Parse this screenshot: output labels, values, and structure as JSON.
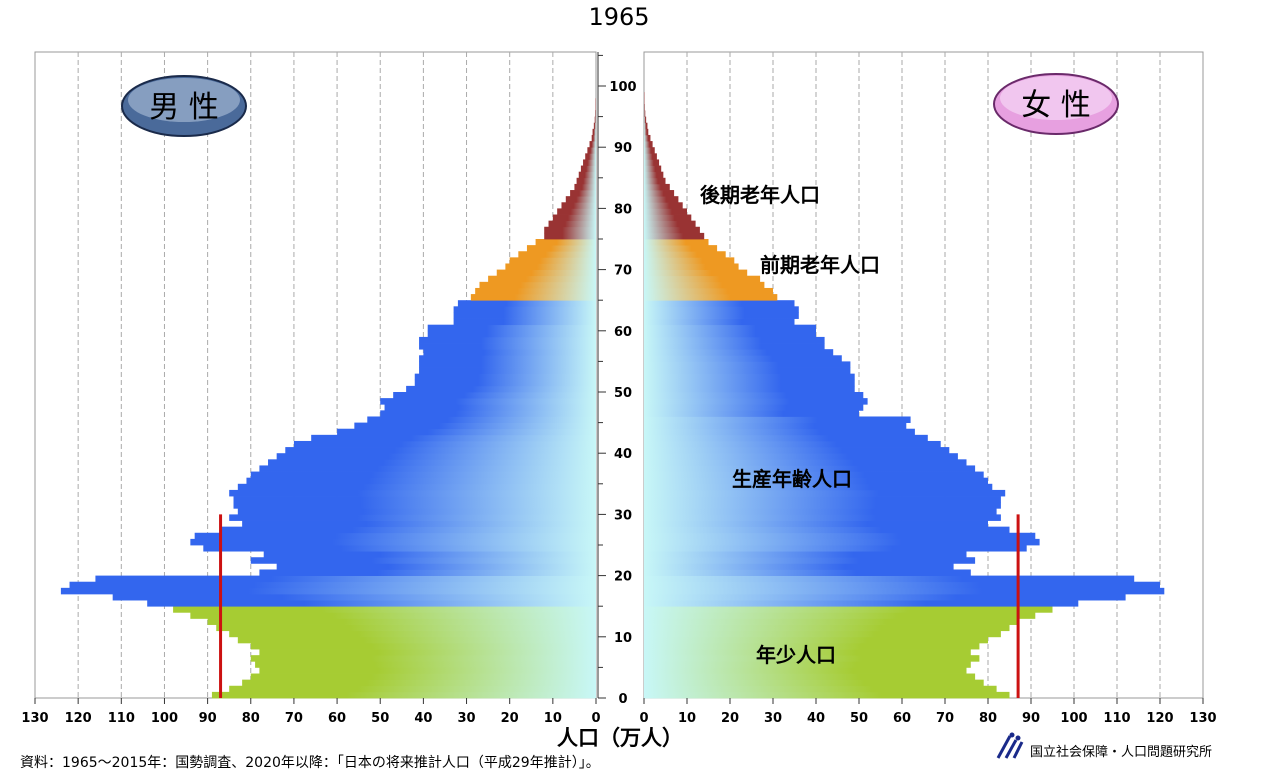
{
  "chart_data": {
    "type": "bar",
    "orientation": "horizontal-pyramid",
    "title": "1965",
    "xlabel": "人口（万人）",
    "male_label": "男 性",
    "female_label": "女 性",
    "x_ticks": [
      130,
      120,
      110,
      100,
      90,
      80,
      70,
      60,
      50,
      40,
      30,
      20,
      10,
      0
    ],
    "x_ticks_right": [
      0,
      10,
      20,
      30,
      40,
      50,
      60,
      70,
      80,
      90,
      100,
      110,
      120,
      130
    ],
    "age_ticks": [
      0,
      10,
      20,
      30,
      40,
      50,
      60,
      70,
      80,
      90,
      100
    ],
    "xlim": [
      0,
      130
    ],
    "ylim": [
      0,
      105
    ],
    "grid": true,
    "age": [
      0,
      1,
      2,
      3,
      4,
      5,
      6,
      7,
      8,
      9,
      10,
      11,
      12,
      13,
      14,
      15,
      16,
      17,
      18,
      19,
      20,
      21,
      22,
      23,
      24,
      25,
      26,
      27,
      28,
      29,
      30,
      31,
      32,
      33,
      34,
      35,
      36,
      37,
      38,
      39,
      40,
      41,
      42,
      43,
      44,
      45,
      46,
      47,
      48,
      49,
      50,
      51,
      52,
      53,
      54,
      55,
      56,
      57,
      58,
      59,
      60,
      61,
      62,
      63,
      64,
      65,
      66,
      67,
      68,
      69,
      70,
      71,
      72,
      73,
      74,
      75,
      76,
      77,
      78,
      79,
      80,
      81,
      82,
      83,
      84,
      85,
      86,
      87,
      88,
      89,
      90,
      91,
      92,
      93,
      94,
      95,
      96,
      97,
      98,
      99,
      100
    ],
    "series": [
      {
        "name": "男 性",
        "values": [
          89,
          85,
          82,
          80,
          78,
          79,
          80,
          78,
          80,
          83,
          85,
          88,
          90,
          94,
          98,
          104,
          112,
          124,
          122,
          116,
          78,
          74,
          80,
          77,
          91,
          94,
          93,
          87,
          82,
          85,
          83,
          84,
          84,
          85,
          83,
          81,
          80,
          78,
          76,
          74,
          72,
          70,
          66,
          60,
          56,
          53,
          50,
          49,
          50,
          47,
          44,
          42,
          42,
          41,
          41,
          41,
          40,
          41,
          41,
          39,
          39,
          33,
          33,
          33,
          32,
          29,
          28,
          27,
          25,
          23,
          21,
          20,
          18,
          16,
          14,
          12,
          12,
          11,
          10,
          9,
          8,
          7,
          6,
          5,
          4.5,
          4,
          3.5,
          3,
          2.5,
          2,
          1.5,
          1,
          0.8,
          0.5,
          0.3,
          0.2,
          0.1,
          0.1,
          0,
          0,
          0
        ]
      },
      {
        "name": "女 性",
        "values": [
          85,
          82,
          79,
          77,
          75,
          76,
          78,
          76,
          78,
          80,
          83,
          85,
          87,
          91,
          95,
          101,
          112,
          121,
          120,
          114,
          76,
          72,
          77,
          75,
          89,
          92,
          91,
          85,
          80,
          83,
          82,
          83,
          83,
          84,
          81,
          80,
          79,
          77,
          75,
          73,
          71,
          69,
          66,
          63,
          61,
          62,
          50,
          51,
          52,
          51,
          49,
          49,
          49,
          48,
          48,
          46,
          44,
          42,
          42,
          40,
          40,
          35,
          36,
          36,
          35,
          31,
          30,
          28,
          27,
          24,
          22,
          21,
          19,
          17,
          15,
          14,
          13,
          12,
          11,
          10,
          9,
          8,
          7,
          6,
          5,
          4.5,
          4,
          3.5,
          3,
          2.5,
          2,
          1.5,
          1,
          0.8,
          0.5,
          0.3,
          0.2,
          0.1,
          0.1,
          0,
          0
        ]
      }
    ],
    "groups": [
      {
        "name": "年少人口",
        "from": 0,
        "to": 14,
        "color_solid": "#a6cc33",
        "color_fade": "#c8f7f7"
      },
      {
        "name": "生産年齢人口",
        "from": 15,
        "to": 64,
        "color_solid": "#3366ee",
        "color_fade": "#c8f7f7"
      },
      {
        "name": "前期老年人口",
        "from": 65,
        "to": 74,
        "color_solid": "#ee9922",
        "color_fade": "#c8f7f7"
      },
      {
        "name": "後期老年人口",
        "from": 75,
        "to": 105,
        "color_solid": "#993333",
        "color_fade": "#c8f7f7"
      }
    ],
    "reference_line": {
      "value": 87,
      "age_from": 0,
      "age_to": 29,
      "color": "#cc1111"
    },
    "colors": {
      "male_badge": "#4a6a9a",
      "female_badge": "#e7a0e0"
    }
  },
  "footer": {
    "source": "資料：1965～2015年：国勢調査、2020年以降：「日本の将来推計人口（平成29年推計）」。",
    "org": "国立社会保障・人口問題研究所"
  }
}
